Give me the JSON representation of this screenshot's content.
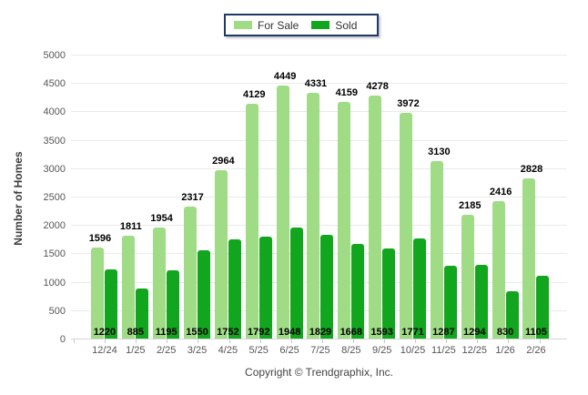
{
  "legend": {
    "for_sale": "For Sale",
    "sold": "Sold"
  },
  "footer": {
    "copyright": "Copyright © Trendgraphix, Inc."
  },
  "colors": {
    "for_sale": "#A0DB85",
    "sold": "#12A51E",
    "legend_border": "#1F3864",
    "grid": "#EAEAEA"
  },
  "chart_data": {
    "type": "bar",
    "title": "",
    "categories": [
      "12/24",
      "1/25",
      "2/25",
      "3/25",
      "4/25",
      "5/25",
      "6/25",
      "7/25",
      "8/25",
      "9/25",
      "10/25",
      "11/25",
      "12/25",
      "1/26",
      "2/26"
    ],
    "series": [
      {
        "name": "For Sale",
        "values": [
          1596,
          1811,
          1954,
          2317,
          2964,
          4129,
          4449,
          4331,
          4159,
          4278,
          3972,
          3130,
          2185,
          2416,
          2828
        ]
      },
      {
        "name": "Sold",
        "values": [
          1220,
          885,
          1195,
          1550,
          1752,
          1792,
          1948,
          1829,
          1668,
          1593,
          1771,
          1287,
          1294,
          830,
          1105
        ]
      }
    ],
    "xlabel": "",
    "ylabel": "Number of Homes",
    "ylim": [
      0,
      5000
    ],
    "ytick_step": 500,
    "grid": true,
    "legend_position": "top-center"
  }
}
